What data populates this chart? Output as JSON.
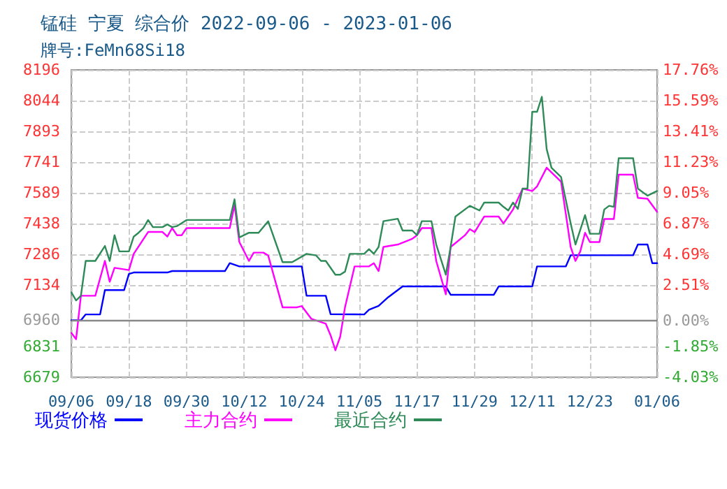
{
  "chart_data": {
    "type": "line",
    "title": "锰硅 宁夏 综合价 2022-09-06 - 2023-01-06",
    "subtitle": "牌号:FeMn68Si18",
    "xlim": [
      "2022-09-06",
      "2023-01-06"
    ],
    "xticks": [
      {
        "value": "2022-09-06",
        "label": "09/06"
      },
      {
        "value": "2022-09-18",
        "label": "09/18"
      },
      {
        "value": "2022-09-30",
        "label": "09/30"
      },
      {
        "value": "2022-10-12",
        "label": "10/12"
      },
      {
        "value": "2022-10-24",
        "label": "10/24"
      },
      {
        "value": "2022-11-05",
        "label": "11/05"
      },
      {
        "value": "2022-11-17",
        "label": "11/17"
      },
      {
        "value": "2022-11-29",
        "label": "11/29"
      },
      {
        "value": "2022-12-11",
        "label": "12/11"
      },
      {
        "value": "2022-12-23",
        "label": "12/23"
      },
      {
        "value": "2023-01-06",
        "label": "01/06"
      }
    ],
    "ylim": [
      6679,
      8196
    ],
    "yticks": [
      6679,
      6831,
      6960,
      7134,
      7286,
      7438,
      7589,
      7741,
      7893,
      8044,
      8196
    ],
    "y2lim": [
      -4.03,
      17.76
    ],
    "y2ticks": [
      {
        "value": -4.03,
        "label": "-4.03%"
      },
      {
        "value": -1.85,
        "label": "-1.85%"
      },
      {
        "value": 0,
        "label": "0.00%"
      },
      {
        "value": 2.51,
        "label": "2.51%"
      },
      {
        "value": 4.69,
        "label": "4.69%"
      },
      {
        "value": 6.87,
        "label": "6.87%"
      },
      {
        "value": 9.05,
        "label": "9.05%"
      },
      {
        "value": 11.23,
        "label": "11.23%"
      },
      {
        "value": 13.41,
        "label": "13.41%"
      },
      {
        "value": 15.59,
        "label": "15.59%"
      },
      {
        "value": 17.76,
        "label": "17.76%"
      }
    ],
    "ref_lines": [
      {
        "axis": "y",
        "value": 6960,
        "color": "#888888",
        "line_style": "solid"
      }
    ],
    "grid": true,
    "legend": "bottom",
    "marker": "none",
    "line_style": "solid",
    "series": [
      {
        "name": "现货价格",
        "color": "#0000ff",
        "x": [
          "2022-09-06",
          "2022-09-08",
          "2022-09-09",
          "2022-09-12",
          "2022-09-13",
          "2022-09-17",
          "2022-09-18",
          "2022-09-19",
          "2022-09-26",
          "2022-09-27",
          "2022-10-08",
          "2022-10-09",
          "2022-10-11",
          "2022-10-24",
          "2022-10-25",
          "2022-10-29",
          "2022-10-30",
          "2022-11-06",
          "2022-11-07",
          "2022-11-09",
          "2022-11-11",
          "2022-11-14",
          "2022-11-23",
          "2022-11-24",
          "2022-12-03",
          "2022-12-04",
          "2022-12-11",
          "2022-12-12",
          "2022-12-18",
          "2022-12-19",
          "2023-01-01",
          "2023-01-02",
          "2023-01-04",
          "2023-01-05",
          "2023-01-06"
        ],
        "values": [
          6960,
          6960,
          6989,
          6989,
          7109,
          7109,
          7189,
          7196,
          7196,
          7203,
          7203,
          7242,
          7226,
          7226,
          7081,
          7081,
          6990,
          6989,
          7012,
          7031,
          7074,
          7127,
          7127,
          7086,
          7086,
          7127,
          7127,
          7226,
          7226,
          7281,
          7281,
          7334,
          7334,
          7242,
          7242
        ]
      },
      {
        "name": "主力合约",
        "color": "#ff00ff",
        "x": [
          "2022-09-06",
          "2022-09-07",
          "2022-09-08",
          "2022-09-11",
          "2022-09-13",
          "2022-09-14",
          "2022-09-15",
          "2022-09-18",
          "2022-09-19",
          "2022-09-22",
          "2022-09-25",
          "2022-09-26",
          "2022-09-27",
          "2022-09-28",
          "2022-09-29",
          "2022-09-30",
          "2022-10-09",
          "2022-10-10",
          "2022-10-11",
          "2022-10-13",
          "2022-10-14",
          "2022-10-16",
          "2022-10-17",
          "2022-10-20",
          "2022-10-23",
          "2022-10-24",
          "2022-10-26",
          "2022-10-29",
          "2022-10-30",
          "2022-10-31",
          "2022-11-01",
          "2022-11-02",
          "2022-11-04",
          "2022-11-07",
          "2022-11-08",
          "2022-11-09",
          "2022-11-10",
          "2022-11-13",
          "2022-11-16",
          "2022-11-17",
          "2022-11-18",
          "2022-11-20",
          "2022-11-21",
          "2022-11-23",
          "2022-11-24",
          "2022-11-25",
          "2022-11-27",
          "2022-11-28",
          "2022-11-29",
          "2022-12-01",
          "2022-12-04",
          "2022-12-05",
          "2022-12-06",
          "2022-12-07",
          "2022-12-09",
          "2022-12-11",
          "2022-12-12",
          "2022-12-14",
          "2022-12-16",
          "2022-12-17",
          "2022-12-18",
          "2022-12-19",
          "2022-12-20",
          "2022-12-21",
          "2022-12-22",
          "2022-12-23",
          "2022-12-25",
          "2022-12-26",
          "2022-12-28",
          "2022-12-29",
          "2023-01-01",
          "2023-01-02",
          "2023-01-04",
          "2023-01-06"
        ],
        "values": [
          6898,
          6867,
          7081,
          7081,
          7253,
          7150,
          7219,
          7208,
          7288,
          7396,
          7396,
          7373,
          7415,
          7380,
          7380,
          7415,
          7415,
          7529,
          7346,
          7253,
          7294,
          7294,
          7280,
          7024,
          7024,
          7030,
          6967,
          6943,
          6886,
          6812,
          6879,
          7024,
          7226,
          7226,
          7242,
          7203,
          7322,
          7334,
          7362,
          7380,
          7415,
          7415,
          7253,
          7088,
          7322,
          7341,
          7380,
          7410,
          7395,
          7472,
          7472,
          7438,
          7472,
          7507,
          7610,
          7598,
          7621,
          7713,
          7667,
          7644,
          7484,
          7322,
          7253,
          7300,
          7392,
          7346,
          7346,
          7460,
          7460,
          7679,
          7679,
          7564,
          7560,
          7495
        ]
      },
      {
        "name": "最近合约",
        "color": "#2e8b57",
        "x": [
          "2022-09-06",
          "2022-09-07",
          "2022-09-08",
          "2022-09-09",
          "2022-09-11",
          "2022-09-13",
          "2022-09-14",
          "2022-09-15",
          "2022-09-16",
          "2022-09-18",
          "2022-09-19",
          "2022-09-20",
          "2022-09-21",
          "2022-09-22",
          "2022-09-23",
          "2022-09-25",
          "2022-09-26",
          "2022-09-27",
          "2022-09-28",
          "2022-09-30",
          "2022-10-09",
          "2022-10-10",
          "2022-10-11",
          "2022-10-13",
          "2022-10-15",
          "2022-10-17",
          "2022-10-20",
          "2022-10-22",
          "2022-10-25",
          "2022-10-27",
          "2022-10-28",
          "2022-10-29",
          "2022-10-31",
          "2022-11-01",
          "2022-11-02",
          "2022-11-03",
          "2022-11-06",
          "2022-11-07",
          "2022-11-08",
          "2022-11-09",
          "2022-11-10",
          "2022-11-13",
          "2022-11-14",
          "2022-11-16",
          "2022-11-17",
          "2022-11-18",
          "2022-11-20",
          "2022-11-21",
          "2022-11-23",
          "2022-11-24",
          "2022-11-25",
          "2022-11-28",
          "2022-11-30",
          "2022-12-01",
          "2022-12-04",
          "2022-12-05",
          "2022-12-06",
          "2022-12-07",
          "2022-12-08",
          "2022-12-09",
          "2022-12-10",
          "2022-12-11",
          "2022-12-12",
          "2022-12-13",
          "2022-12-14",
          "2022-12-15",
          "2022-12-17",
          "2022-12-19",
          "2022-12-20",
          "2022-12-22",
          "2022-12-23",
          "2022-12-25",
          "2022-12-26",
          "2022-12-27",
          "2022-12-28",
          "2022-12-29",
          "2023-01-01",
          "2023-01-02",
          "2023-01-04",
          "2023-01-06"
        ],
        "values": [
          7098,
          7058,
          7081,
          7253,
          7253,
          7327,
          7253,
          7380,
          7300,
          7300,
          7373,
          7392,
          7415,
          7455,
          7420,
          7420,
          7433,
          7420,
          7425,
          7455,
          7455,
          7557,
          7369,
          7392,
          7392,
          7449,
          7247,
          7247,
          7288,
          7280,
          7253,
          7253,
          7185,
          7185,
          7200,
          7288,
          7288,
          7311,
          7288,
          7322,
          7449,
          7461,
          7403,
          7403,
          7380,
          7449,
          7449,
          7334,
          7185,
          7322,
          7472,
          7525,
          7502,
          7541,
          7541,
          7520,
          7502,
          7541,
          7510,
          7610,
          7610,
          7989,
          7989,
          8063,
          7805,
          7713,
          7667,
          7438,
          7334,
          7479,
          7387,
          7387,
          7507,
          7525,
          7520,
          7760,
          7760,
          7610,
          7575,
          7598
        ]
      }
    ]
  }
}
